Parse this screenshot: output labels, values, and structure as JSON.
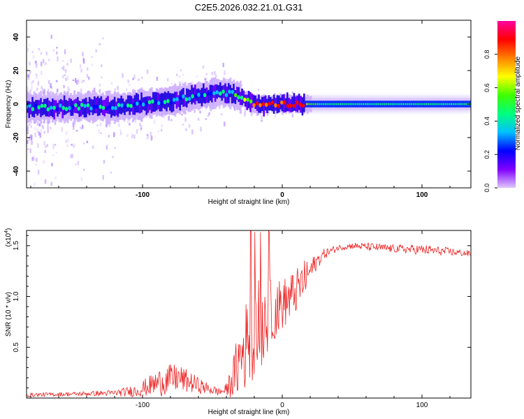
{
  "title": "C2E5.2026.032.21.01.G31",
  "chart_data": [
    {
      "type": "heatmap",
      "xlabel": "Height of straight line (km)",
      "ylabel": "Frequency (Hz)",
      "xlim": [
        -183,
        135
      ],
      "ylim": [
        -50,
        50
      ],
      "xticks": [
        -100,
        0,
        100
      ],
      "xtick_labels": [
        "-100",
        "0",
        "100"
      ],
      "yticks": [
        -40,
        -20,
        0,
        20,
        40
      ],
      "ytick_labels": [
        "-40",
        "-20",
        "0",
        "20",
        "40"
      ],
      "colorbar": {
        "label": "Normalized spectral amplitude",
        "range": [
          0,
          1
        ],
        "ticks": [
          0.0,
          0.2,
          0.4,
          0.6,
          0.8
        ],
        "tick_labels": [
          "0.0",
          "0.2",
          "0.4",
          "0.6",
          "0.8"
        ],
        "colors": [
          "#e0c8ff",
          "#8000ff",
          "#0000ff",
          "#00c0ff",
          "#00ff80",
          "#40ff00",
          "#ffff00",
          "#ff8000",
          "#ff0000",
          "#ff00a0"
        ]
      },
      "ridge": {
        "x": [
          -183,
          -160,
          -140,
          -120,
          -100,
          -80,
          -60,
          -45,
          -35,
          -28,
          -20,
          -10,
          0,
          10,
          20,
          40,
          60,
          80,
          100,
          120,
          135
        ],
        "y": [
          -2,
          -2,
          -1.5,
          -2,
          0,
          2,
          5,
          7,
          6,
          3,
          0,
          0,
          0,
          0,
          0,
          0,
          0,
          0,
          0,
          0,
          0
        ]
      }
    },
    {
      "type": "line",
      "xlabel": "Height of straight line (km)",
      "ylabel": "SNR (10 * v/v)",
      "y_multiplier": "(x10",
      "y_multiplier_exp": "4",
      "y_multiplier_close": ")",
      "xlim": [
        -183,
        135
      ],
      "ylim": [
        0,
        1.65
      ],
      "xticks": [
        -100,
        0,
        100
      ],
      "xtick_labels": [
        "-100",
        "0",
        "100"
      ],
      "yticks": [
        0.5,
        1.0,
        1.5
      ],
      "ytick_labels": [
        "0.5",
        "1.0",
        "1.5"
      ],
      "color": "#ee2222",
      "series_envelope": {
        "x": [
          -183,
          -150,
          -120,
          -105,
          -95,
          -85,
          -75,
          -65,
          -55,
          -45,
          -40,
          -35,
          -30,
          -25,
          -20,
          -15,
          -10,
          -5,
          0,
          5,
          10,
          15,
          20,
          25,
          30,
          40,
          50,
          60,
          80,
          100,
          120,
          135
        ],
        "mean": [
          0.03,
          0.04,
          0.05,
          0.07,
          0.12,
          0.17,
          0.2,
          0.15,
          0.1,
          0.06,
          0.08,
          0.2,
          0.4,
          0.55,
          0.65,
          0.75,
          0.82,
          0.88,
          0.92,
          0.98,
          1.05,
          1.15,
          1.25,
          1.35,
          1.42,
          1.48,
          1.5,
          1.49,
          1.47,
          1.46,
          1.44,
          1.42
        ],
        "amp": [
          0.02,
          0.02,
          0.03,
          0.06,
          0.1,
          0.15,
          0.14,
          0.1,
          0.06,
          0.04,
          0.06,
          0.2,
          0.4,
          0.45,
          0.45,
          0.5,
          0.35,
          0.3,
          0.25,
          0.25,
          0.22,
          0.2,
          0.12,
          0.08,
          0.05,
          0.03,
          0.03,
          0.04,
          0.04,
          0.05,
          0.04,
          0.03
        ]
      }
    }
  ]
}
